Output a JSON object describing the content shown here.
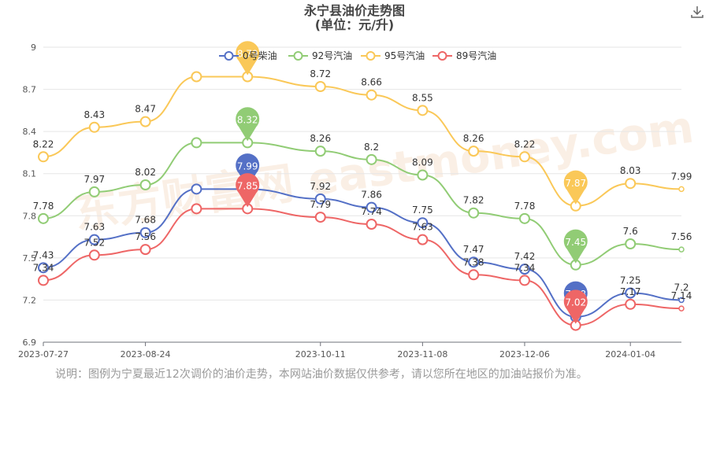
{
  "page": {
    "download_icon": "download-icon",
    "note": "说明：图例为宁夏最近12次调价的油价走势，本网站油价数据仅供参考，请以您所在地区的加油站报价为准。",
    "watermark": "东方财富网 eastmoney.com"
  },
  "chart_data": {
    "type": "line",
    "title": "永宁县油价走势图",
    "subtitle": "(单位：元/升)",
    "xlabel": "",
    "ylabel": "",
    "ylim": [
      6.9,
      9
    ],
    "yticks": [
      "6.9",
      "7.2",
      "7.5",
      "7.8",
      "8.1",
      "8.4",
      "8.7",
      "9"
    ],
    "xticks": [
      "2023-07-27",
      "2023-08-24",
      "2023-10-11",
      "2023-11-08",
      "2023-12-06",
      "2024-01-04"
    ],
    "grid": true,
    "legend_position": "top",
    "x": [
      "2023-07-27",
      "2023-08-10",
      "2023-08-24",
      "2023-09-07",
      "2023-09-21",
      "2023-10-11",
      "2023-10-25",
      "2023-11-08",
      "2023-11-22",
      "2023-12-06",
      "2023-12-20",
      "2024-01-04",
      "2024-01-18"
    ],
    "series": [
      {
        "name": "0号柴油",
        "color": "#5470c6",
        "values": [
          7.43,
          7.63,
          7.68,
          7.99,
          7.99,
          7.92,
          7.86,
          7.75,
          7.47,
          7.42,
          7.08,
          7.25,
          7.2
        ],
        "labels": [
          "7.43",
          "7.63",
          "7.68",
          "",
          "",
          "7.92",
          "7.86",
          "7.75",
          "7.47",
          "7.42",
          "",
          "7.25",
          "7.2"
        ],
        "pins": [
          {
            "index": 4,
            "label": "7.99"
          },
          {
            "index": 10,
            "label": "7.08"
          }
        ]
      },
      {
        "name": "92号汽油",
        "color": "#91cc75",
        "values": [
          7.78,
          7.97,
          8.02,
          8.32,
          8.32,
          8.26,
          8.2,
          8.09,
          7.82,
          7.78,
          7.45,
          7.6,
          7.56
        ],
        "labels": [
          "7.78",
          "7.97",
          "8.02",
          "",
          "",
          "8.26",
          "8.2",
          "8.09",
          "7.82",
          "7.78",
          "",
          "7.6",
          "7.56"
        ],
        "pins": [
          {
            "index": 4,
            "label": "8.32"
          },
          {
            "index": 10,
            "label": "7.45"
          }
        ]
      },
      {
        "name": "95号汽油",
        "color": "#fac858",
        "values": [
          8.22,
          8.43,
          8.47,
          8.79,
          8.79,
          8.72,
          8.66,
          8.55,
          8.26,
          8.22,
          7.87,
          8.03,
          7.99
        ],
        "labels": [
          "8.22",
          "8.43",
          "8.47",
          "",
          "",
          "8.72",
          "8.66",
          "8.55",
          "8.26",
          "8.22",
          "",
          "8.03",
          "7.99"
        ],
        "pins": [
          {
            "index": 4,
            "label": "8.79"
          },
          {
            "index": 10,
            "label": "7.87"
          }
        ]
      },
      {
        "name": "89号汽油",
        "color": "#ee6666",
        "values": [
          7.34,
          7.52,
          7.56,
          7.85,
          7.85,
          7.79,
          7.74,
          7.63,
          7.38,
          7.34,
          7.02,
          7.17,
          7.14
        ],
        "labels": [
          "7.34",
          "7.52",
          "7.56",
          "",
          "",
          "7.79",
          "7.74",
          "7.63",
          "7.38",
          "7.34",
          "",
          "7.17",
          "7.14"
        ],
        "pins": [
          {
            "index": 4,
            "label": "7.85"
          },
          {
            "index": 10,
            "label": "7.02"
          }
        ]
      }
    ]
  }
}
